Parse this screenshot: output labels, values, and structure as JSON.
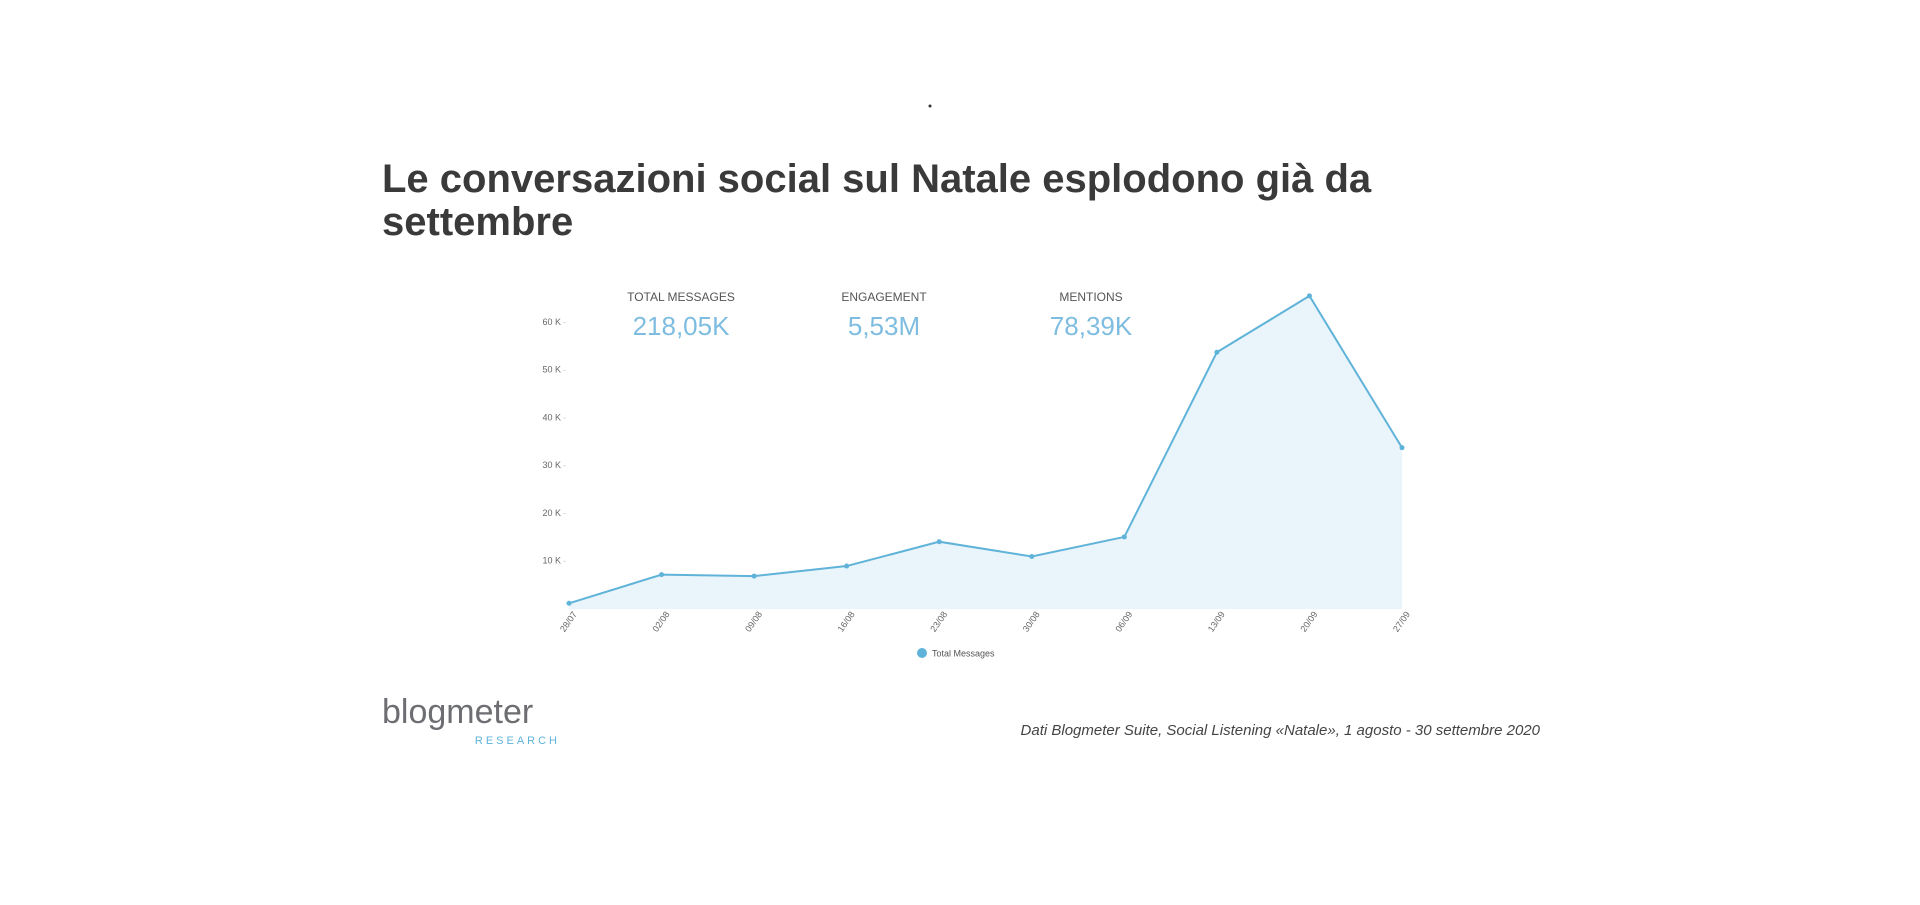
{
  "chart_data": {
    "type": "line",
    "title": "Le conversazioni social sul Natale esplodono già da settembre",
    "stats": [
      {
        "label": "TOTAL MESSAGES",
        "value": "218,05K"
      },
      {
        "label": "ENGAGEMENT",
        "value": "5,53M"
      },
      {
        "label": "MENTIONS",
        "value": "78,39K"
      }
    ],
    "categories": [
      "28/07",
      "02/08",
      "09/08",
      "16/08",
      "23/08",
      "30/08",
      "06/09",
      "13/09",
      "20/09",
      "27/09"
    ],
    "series": [
      {
        "name": "Total Messages",
        "color": "#5fb3d9",
        "values": [
          1200,
          7200,
          6900,
          9000,
          14100,
          11000,
          15100,
          53800,
          65600,
          33800
        ]
      }
    ],
    "ylim": [
      0,
      66000
    ],
    "yticks": [
      {
        "value": 10000,
        "label": "10 K"
      },
      {
        "value": 20000,
        "label": "20 K"
      },
      {
        "value": 30000,
        "label": "30 K"
      },
      {
        "value": 40000,
        "label": "40 K"
      },
      {
        "value": 50000,
        "label": "50 K"
      },
      {
        "value": 60000,
        "label": "60 K"
      }
    ],
    "fill": "#e9f4fb",
    "logo": {
      "name": "blogmeter",
      "sub": "RESEARCH"
    },
    "source": "Dati Blogmeter Suite, Social Listening «Natale», 1 agosto - 30 settembre 2020"
  }
}
